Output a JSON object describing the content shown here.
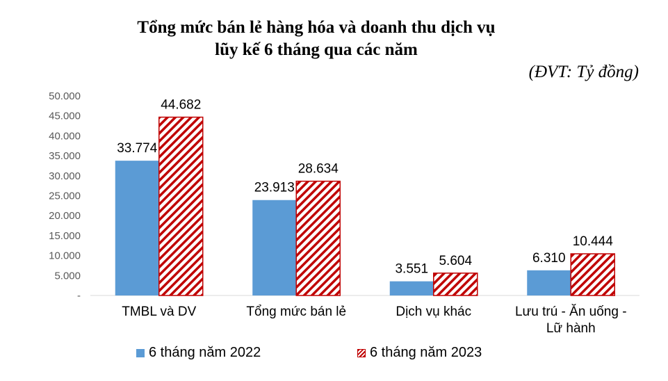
{
  "title_line1": "Tổng mức bán lẻ hàng hóa và doanh thu dịch vụ",
  "title_line2": "lũy kế 6 tháng qua các năm",
  "unit_note": "(ĐVT: Tỷ đồng)",
  "colors": {
    "series_2022": "#5b9bd5",
    "series_2023": "#c00000"
  },
  "chart_data": {
    "type": "bar",
    "title": "Tổng mức bán lẻ hàng hóa và doanh thu dịch vụ lũy kế 6 tháng qua các năm",
    "categories": [
      [
        "TMBL và DV"
      ],
      [
        "Tổng mức bán lẻ"
      ],
      [
        "Dịch vụ khác"
      ],
      [
        "Lưu trú - Ăn uống -",
        "Lữ hành"
      ]
    ],
    "series": [
      {
        "name": "6 tháng năm 2022",
        "values": [
          33774,
          23913,
          3551,
          6310
        ],
        "labels": [
          "33.774",
          "23.913",
          "3.551",
          "6.310"
        ],
        "fill": "solid"
      },
      {
        "name": "6 tháng năm 2023",
        "values": [
          44682,
          28634,
          5604,
          10444
        ],
        "labels": [
          "44.682",
          "28.634",
          "5.604",
          "10.444"
        ],
        "fill": "hatched"
      }
    ],
    "ylim": [
      0,
      50000
    ],
    "yticks": [
      0,
      5000,
      10000,
      15000,
      20000,
      25000,
      30000,
      35000,
      40000,
      45000,
      50000
    ],
    "ytick_labels": [
      "-",
      "5.000",
      "10.000",
      "15.000",
      "20.000",
      "25.000",
      "30.000",
      "35.000",
      "40.000",
      "45.000",
      "50.000"
    ],
    "grid": false,
    "legend_position": "bottom"
  }
}
